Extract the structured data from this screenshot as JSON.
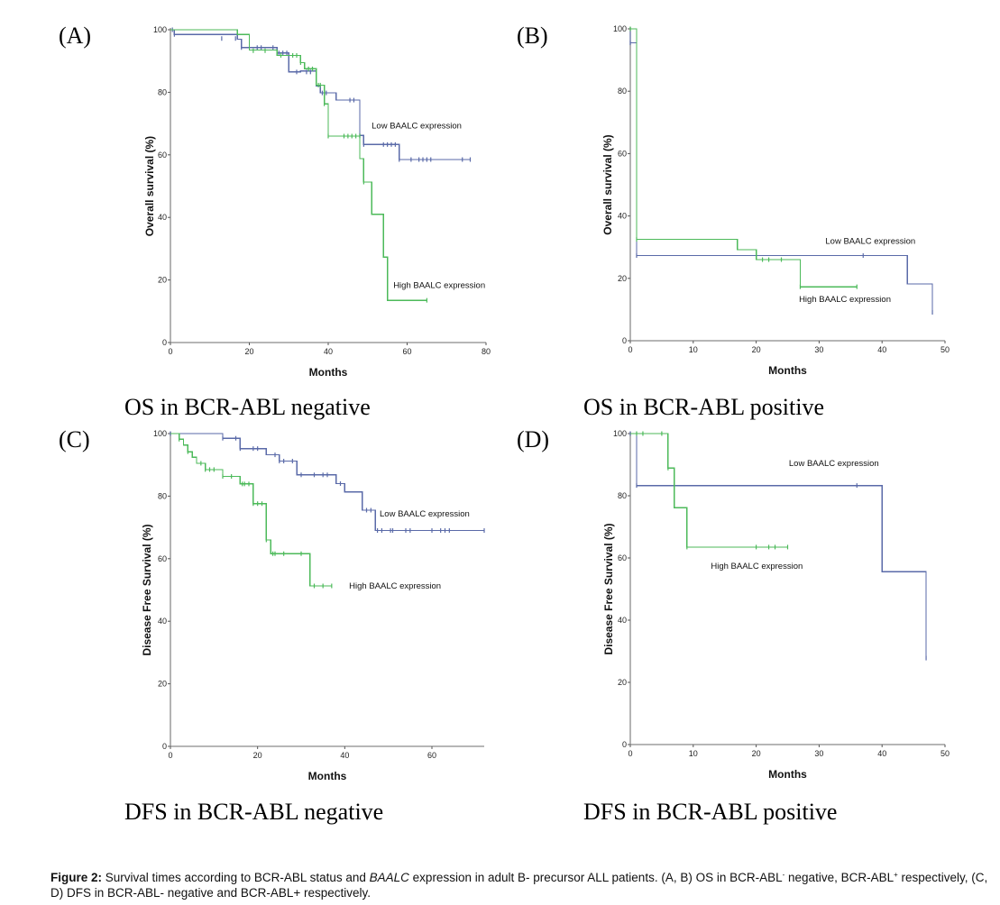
{
  "caption": {
    "label": "Figure 2:",
    "text_1": " Survival times according to BCR-ABL status and ",
    "gene": "BAALC",
    "text_2": " expression in adult B- precursor ALL patients. (A, B) OS in BCR-ABL",
    "sup_1": "-",
    "text_3": " negative, BCR-ABL",
    "sup_2": "+",
    "text_4": " respectively, (C, D) DFS in BCR-ABL- negative and BCR-ABL+ respectively."
  },
  "colors": {
    "low_baalc": "#5a6aa8",
    "high_baalc": "#4cba5a"
  },
  "chart_data": [
    {
      "id": "A",
      "type": "line",
      "panel_label": "(A)",
      "subtitle": "OS in BCR-ABL negative",
      "xlabel": "Months",
      "ylabel": "Overall survival (%)",
      "xlim": [
        0,
        80
      ],
      "ylim": [
        0,
        100
      ],
      "xticks": [
        0,
        20,
        40,
        60,
        80
      ],
      "yticks": [
        0,
        20,
        40,
        60,
        80,
        100
      ],
      "grid": false,
      "series": [
        {
          "name": "Low BAALC expression",
          "key": "low",
          "steps": [
            [
              0,
              100
            ],
            [
              1,
              98.5
            ],
            [
              17,
              97
            ],
            [
              18,
              94.3
            ],
            [
              27,
              92.6
            ],
            [
              30,
              86.5
            ],
            [
              33,
              86.8
            ],
            [
              37,
              82
            ],
            [
              38,
              79.8
            ],
            [
              42,
              77.5
            ],
            [
              48,
              66.2
            ],
            [
              49,
              63.3
            ],
            [
              58,
              58.5
            ],
            [
              76,
              58.5
            ]
          ],
          "censored": [
            [
              0.5,
              100
            ],
            [
              1,
              98.5
            ],
            [
              13,
              97.2
            ],
            [
              16.5,
              97.2
            ],
            [
              18,
              94.3
            ],
            [
              22,
              94.3
            ],
            [
              23,
              94.3
            ],
            [
              26,
              94.3
            ],
            [
              27.5,
              92.6
            ],
            [
              28.5,
              92.6
            ],
            [
              29.5,
              92.6
            ],
            [
              32,
              86.5
            ],
            [
              34.5,
              86.5
            ],
            [
              35.5,
              86.5
            ],
            [
              38.5,
              79.8
            ],
            [
              39.5,
              79.8
            ],
            [
              45.5,
              77.5
            ],
            [
              46.5,
              77.5
            ],
            [
              48,
              66.2
            ],
            [
              49,
              63.3
            ],
            [
              54,
              63.3
            ],
            [
              55,
              63.3
            ],
            [
              56,
              63.3
            ],
            [
              57,
              63.3
            ],
            [
              58,
              58.5
            ],
            [
              61,
              58.5
            ],
            [
              63,
              58.5
            ],
            [
              64,
              58.5
            ],
            [
              65,
              58.5
            ],
            [
              66,
              58.5
            ],
            [
              74,
              58.5
            ],
            [
              76,
              58.5
            ]
          ]
        },
        {
          "name": "High BAALC expression",
          "key": "high",
          "steps": [
            [
              0,
              100
            ],
            [
              17,
              98.5
            ],
            [
              20,
              93.5
            ],
            [
              27,
              91.8
            ],
            [
              33,
              89.5
            ],
            [
              34,
              87.5
            ],
            [
              37,
              82.3
            ],
            [
              39,
              76.3
            ],
            [
              40,
              66
            ],
            [
              48,
              58.8
            ],
            [
              49,
              51.3
            ],
            [
              51,
              41
            ],
            [
              54,
              27.3
            ],
            [
              55,
              13.5
            ],
            [
              65,
              13.5
            ]
          ],
          "censored": [
            [
              21,
              93.3
            ],
            [
              24,
              93.3
            ],
            [
              28,
              91.8
            ],
            [
              31,
              91.8
            ],
            [
              32,
              91.8
            ],
            [
              33,
              89.5
            ],
            [
              35,
              87.5
            ],
            [
              36,
              87.5
            ],
            [
              37.5,
              82.3
            ],
            [
              38,
              82.3
            ],
            [
              39,
              76.3
            ],
            [
              40,
              66
            ],
            [
              44,
              66
            ],
            [
              45,
              66
            ],
            [
              46,
              66
            ],
            [
              47,
              66
            ],
            [
              48,
              66
            ],
            [
              49,
              51.3
            ],
            [
              65,
              13.5
            ]
          ]
        }
      ],
      "annotations": [
        {
          "text": "Low BAALC expression",
          "x": 51,
          "y": 68.5
        },
        {
          "text": "High BAALC expression",
          "x": 56.5,
          "y": 17.5
        }
      ]
    },
    {
      "id": "B",
      "type": "line",
      "panel_label": "(B)",
      "subtitle": "OS in BCR-ABL positive",
      "xlabel": "Months",
      "ylabel": "Overall survival (%)",
      "xlim": [
        0,
        50
      ],
      "ylim": [
        0,
        100
      ],
      "xticks": [
        0,
        10,
        20,
        30,
        40,
        50
      ],
      "yticks": [
        0,
        20,
        40,
        60,
        80,
        100
      ],
      "grid": false,
      "series": [
        {
          "name": "Low BAALC expression",
          "key": "low",
          "steps": [
            [
              0,
              100
            ],
            [
              0,
              95.5
            ],
            [
              1,
              27.3
            ],
            [
              44,
              18.2
            ],
            [
              48,
              9.1
            ]
          ],
          "censored": [
            [
              0,
              95.5
            ],
            [
              1,
              27.3
            ],
            [
              37,
              27.3
            ],
            [
              48,
              9.1
            ]
          ]
        },
        {
          "name": "High BAALC expression",
          "key": "high",
          "steps": [
            [
              0,
              100
            ],
            [
              1,
              32.5
            ],
            [
              17,
              29.2
            ],
            [
              20,
              26
            ],
            [
              27,
              17.3
            ],
            [
              36,
              17.3
            ]
          ],
          "censored": [
            [
              0,
              100
            ],
            [
              1,
              32.5
            ],
            [
              21,
              26
            ],
            [
              22,
              26
            ],
            [
              24,
              26
            ],
            [
              27,
              17.3
            ],
            [
              36,
              17.3
            ]
          ]
        }
      ],
      "annotations": [
        {
          "text": "Low BAALC expression",
          "x": 31,
          "y": 31
        },
        {
          "text": "High BAALC expression",
          "x": 26.8,
          "y": 12.5
        }
      ]
    },
    {
      "id": "C",
      "type": "line",
      "panel_label": "(C)",
      "subtitle": "DFS in BCR-ABL negative",
      "xlabel": "Months",
      "ylabel": "Disease Free Survival (%)",
      "xlim": [
        0,
        72
      ],
      "ylim": [
        0,
        100
      ],
      "xticks": [
        0,
        20,
        40,
        60
      ],
      "yticks": [
        0,
        20,
        40,
        60,
        80,
        100
      ],
      "grid": false,
      "series": [
        {
          "name": "Low BAALC expression",
          "key": "low",
          "steps": [
            [
              0,
              100
            ],
            [
              12,
              98.5
            ],
            [
              16,
              95.2
            ],
            [
              22,
              93.2
            ],
            [
              25,
              91.2
            ],
            [
              29,
              86.8
            ],
            [
              38,
              84
            ],
            [
              40,
              81.3
            ],
            [
              44,
              75.5
            ],
            [
              47,
              69
            ],
            [
              72,
              69
            ]
          ],
          "censored": [
            [
              0,
              100
            ],
            [
              12,
              98.5
            ],
            [
              15,
              98.5
            ],
            [
              16,
              95.2
            ],
            [
              19,
              95.2
            ],
            [
              20,
              95.2
            ],
            [
              24,
              93.2
            ],
            [
              25,
              91.2
            ],
            [
              26,
              91.2
            ],
            [
              28,
              91.2
            ],
            [
              30,
              86.8
            ],
            [
              33,
              86.8
            ],
            [
              35,
              86.8
            ],
            [
              36,
              86.8
            ],
            [
              39,
              84
            ],
            [
              45,
              75.5
            ],
            [
              46,
              75.5
            ],
            [
              47.5,
              69
            ],
            [
              48.5,
              69
            ],
            [
              50.5,
              69
            ],
            [
              51,
              69
            ],
            [
              54,
              69
            ],
            [
              55,
              69
            ],
            [
              60,
              69
            ],
            [
              62,
              69
            ],
            [
              63,
              69
            ],
            [
              64,
              69
            ],
            [
              72,
              69
            ]
          ]
        },
        {
          "name": "High BAALC expression",
          "key": "high",
          "steps": [
            [
              0,
              100
            ],
            [
              2,
              98.2
            ],
            [
              3,
              96.3
            ],
            [
              4,
              94.2
            ],
            [
              5,
              92.4
            ],
            [
              6,
              90.5
            ],
            [
              8,
              88.5
            ],
            [
              12,
              86.3
            ],
            [
              16,
              83.9
            ],
            [
              19,
              77.6
            ],
            [
              22,
              66
            ],
            [
              23,
              61.6
            ],
            [
              32,
              51.3
            ],
            [
              37,
              51.3
            ]
          ],
          "censored": [
            [
              2,
              98.2
            ],
            [
              4,
              94.2
            ],
            [
              7,
              90.5
            ],
            [
              8,
              88.5
            ],
            [
              9,
              88.5
            ],
            [
              10,
              88.5
            ],
            [
              12,
              86.3
            ],
            [
              14,
              86.3
            ],
            [
              16.5,
              83.9
            ],
            [
              17,
              83.9
            ],
            [
              18,
              83.9
            ],
            [
              19,
              77.6
            ],
            [
              20,
              77.6
            ],
            [
              21,
              77.6
            ],
            [
              22,
              66
            ],
            [
              23.5,
              61.6
            ],
            [
              24,
              61.6
            ],
            [
              26,
              61.6
            ],
            [
              30,
              61.6
            ],
            [
              33,
              51.3
            ],
            [
              35,
              51.3
            ],
            [
              37,
              51.3
            ]
          ]
        }
      ],
      "annotations": [
        {
          "text": "Low BAALC expression",
          "x": 48,
          "y": 73.5
        },
        {
          "text": "High BAALC expression",
          "x": 41,
          "y": 50.5
        }
      ]
    },
    {
      "id": "D",
      "type": "line",
      "panel_label": "(D)",
      "subtitle": "DFS in BCR-ABL positive",
      "xlabel": "Months",
      "ylabel": "Disease Free Survival (%)",
      "xlim": [
        0,
        50
      ],
      "ylim": [
        0,
        100
      ],
      "xticks": [
        0,
        10,
        20,
        30,
        40,
        50
      ],
      "yticks": [
        0,
        20,
        40,
        60,
        80,
        100
      ],
      "grid": false,
      "series": [
        {
          "name": "Low BAALC expression",
          "key": "low",
          "steps": [
            [
              0,
              100
            ],
            [
              1,
              83.3
            ],
            [
              40,
              55.6
            ],
            [
              47,
              27.8
            ]
          ],
          "censored": [
            [
              0,
              100
            ],
            [
              1,
              83.3
            ],
            [
              36,
              83.3
            ],
            [
              47,
              27.8
            ]
          ]
        },
        {
          "name": "High BAALC expression",
          "key": "high",
          "steps": [
            [
              0,
              100
            ],
            [
              6,
              88.9
            ],
            [
              7,
              76.2
            ],
            [
              9,
              63.5
            ],
            [
              25,
              63.5
            ]
          ],
          "censored": [
            [
              1,
              100
            ],
            [
              2,
              100
            ],
            [
              5,
              100
            ],
            [
              6,
              88.9
            ],
            [
              9,
              63.5
            ],
            [
              20,
              63.5
            ],
            [
              22,
              63.5
            ],
            [
              23,
              63.5
            ],
            [
              25,
              63.5
            ]
          ]
        }
      ],
      "annotations": [
        {
          "text": "Low BAALC expression",
          "x": 25.2,
          "y": 89.5
        },
        {
          "text": "High BAALC expression",
          "x": 12.8,
          "y": 56.5
        }
      ]
    }
  ]
}
